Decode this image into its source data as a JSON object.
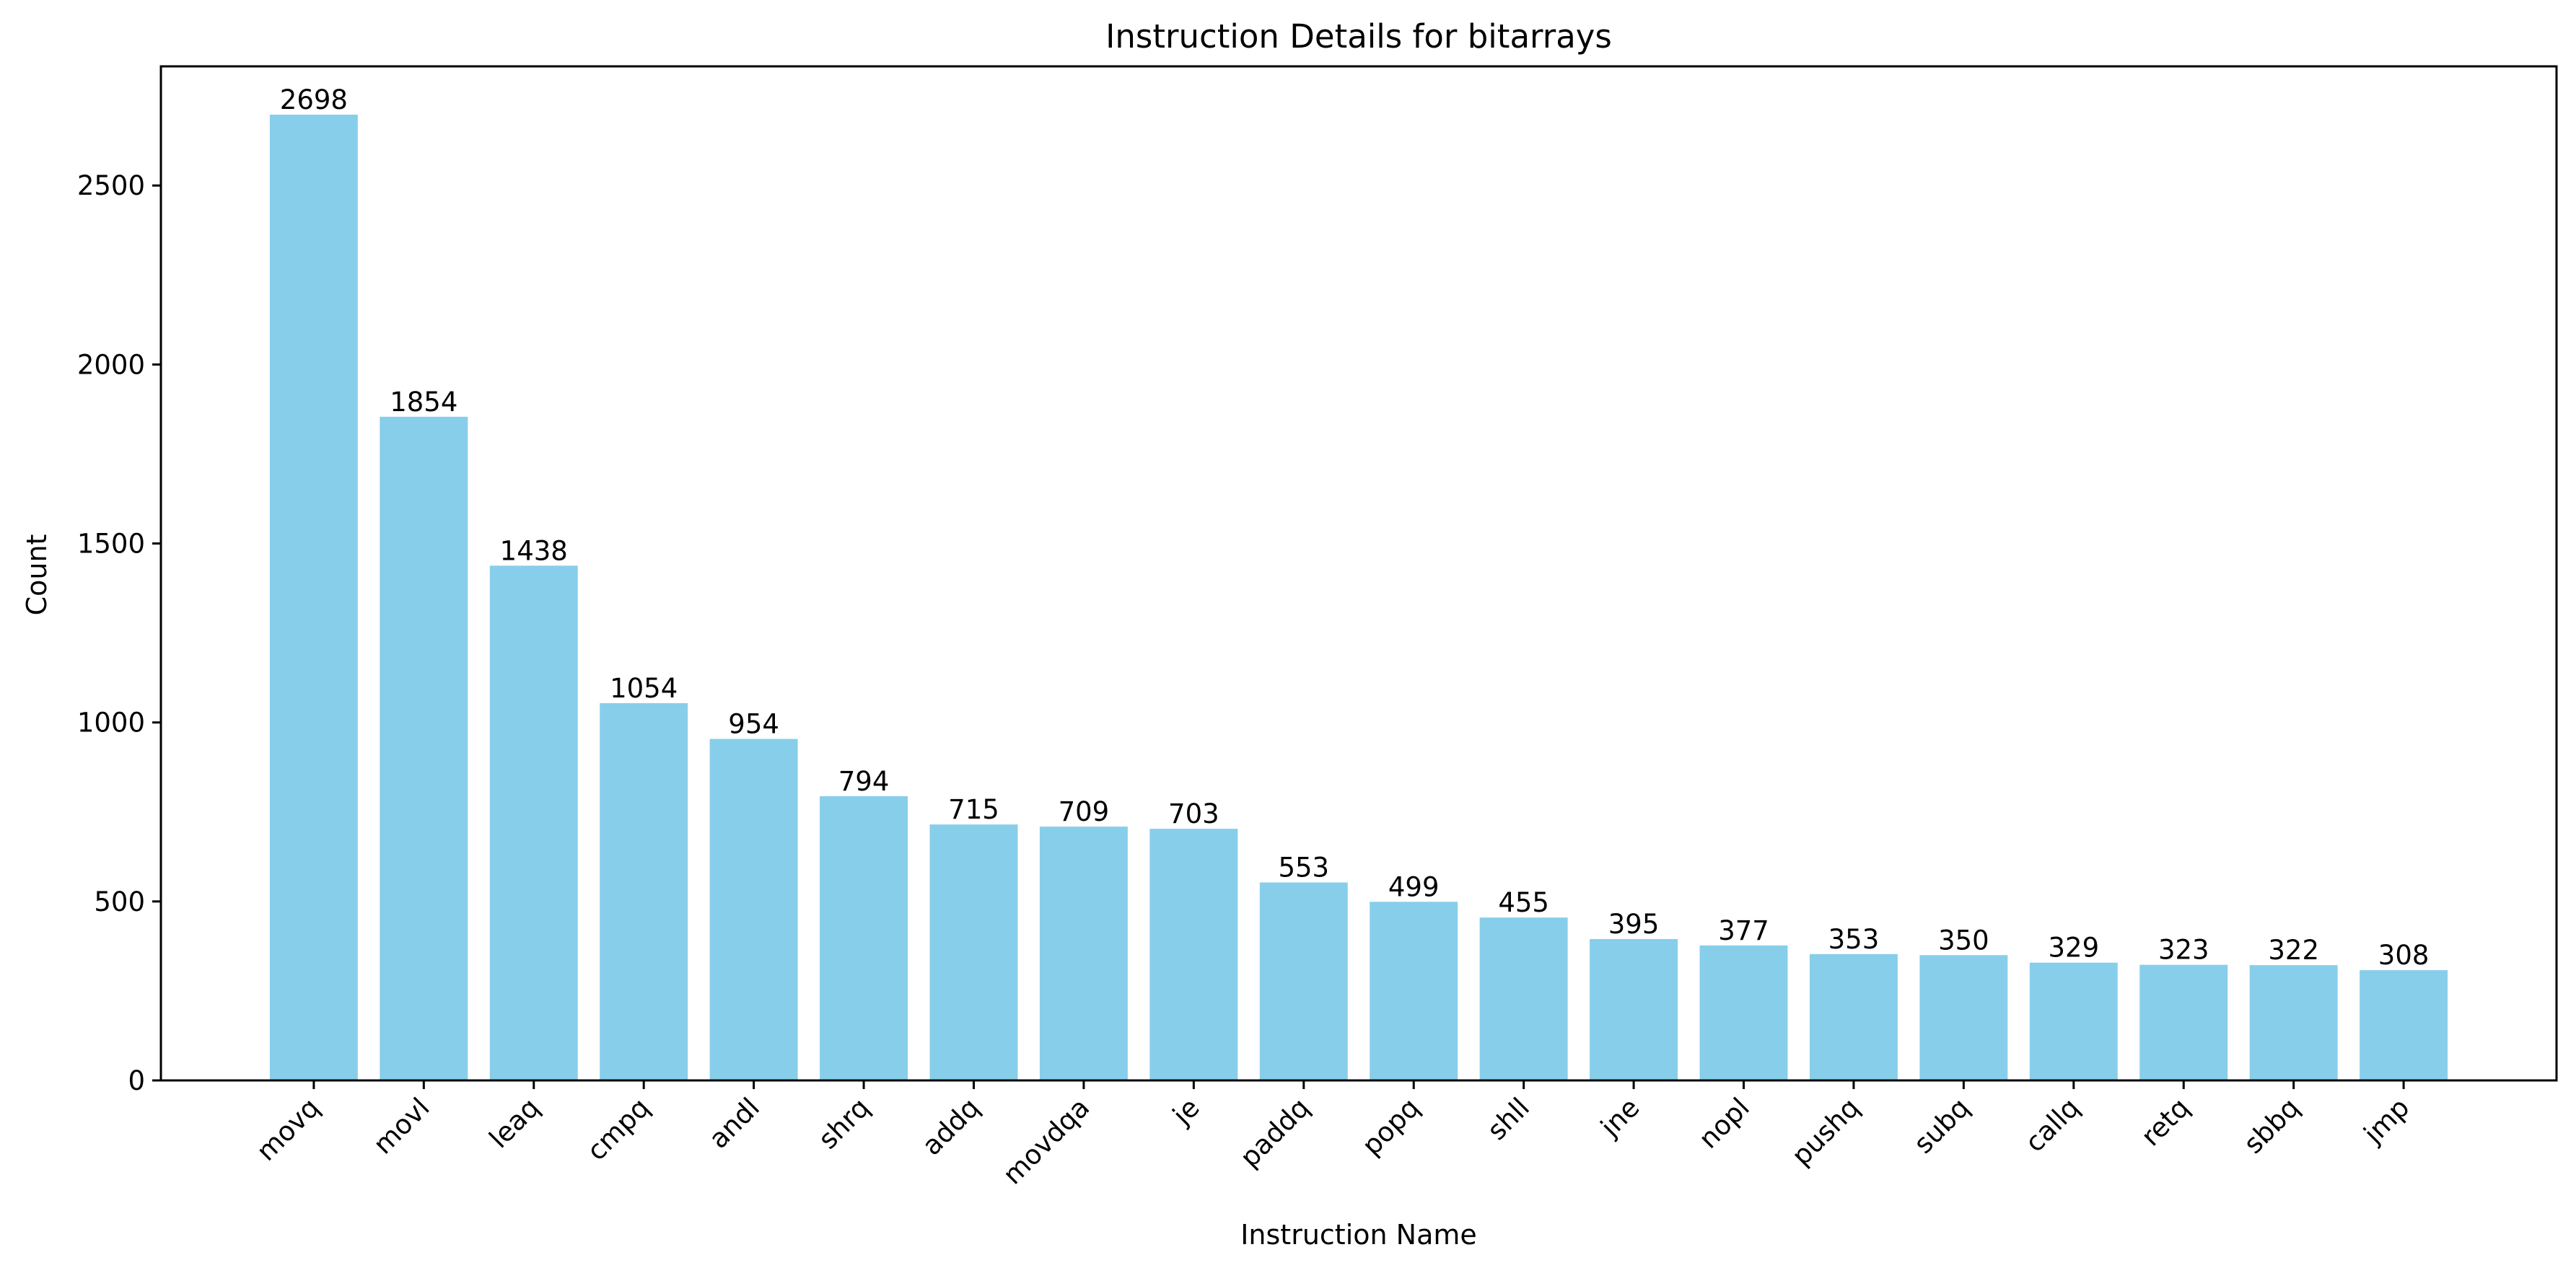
{
  "chart_data": {
    "type": "bar",
    "title": "Instruction Details for bitarrays",
    "xlabel": "Instruction Name",
    "ylabel": "Count",
    "categories": [
      "movq",
      "movl",
      "leaq",
      "cmpq",
      "andl",
      "shrq",
      "addq",
      "movdqa",
      "je",
      "paddq",
      "popq",
      "shll",
      "jne",
      "nopl",
      "pushq",
      "subq",
      "callq",
      "retq",
      "sbbq",
      "jmp"
    ],
    "values": [
      2698,
      1854,
      1438,
      1054,
      954,
      794,
      715,
      709,
      703,
      553,
      499,
      455,
      395,
      377,
      353,
      350,
      329,
      323,
      322,
      308
    ],
    "yticks": [
      0,
      500,
      1000,
      1500,
      2000,
      2500
    ],
    "ylim": [
      0,
      2832.9
    ],
    "bar_color": "#87CEEB",
    "grid": false,
    "legend": false
  }
}
